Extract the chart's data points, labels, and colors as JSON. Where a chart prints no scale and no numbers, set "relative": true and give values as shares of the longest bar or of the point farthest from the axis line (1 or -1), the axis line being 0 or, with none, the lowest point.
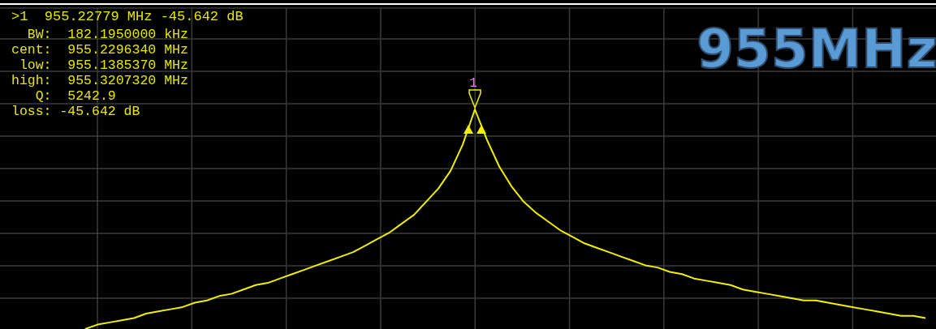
{
  "chart_data": {
    "type": "line",
    "title": "955MHz",
    "relative": true,
    "grid": true,
    "line_style": "solid",
    "categories": [
      null,
      null,
      null,
      null,
      null,
      null,
      null,
      null,
      null,
      null,
      null,
      null,
      null,
      null,
      null,
      null,
      null,
      null,
      null,
      null,
      null,
      null,
      null,
      null,
      null,
      null,
      null,
      null,
      null,
      null,
      null,
      null,
      null,
      null,
      null,
      null,
      null,
      null,
      null,
      null,
      null,
      null,
      null,
      null,
      null,
      null,
      null,
      null,
      null,
      null,
      null,
      null,
      null,
      null,
      null,
      null,
      null,
      null,
      null,
      null,
      null,
      null,
      null,
      null,
      null,
      null,
      null,
      null,
      null,
      null,
      null,
      null,
      null,
      null,
      null,
      null,
      null
    ],
    "series": [
      {
        "color": "#f0f000",
        "values": [
          null,
          null,
          null,
          null,
          null,
          null,
          null,
          0,
          0.02,
          0.03,
          0.04,
          0.05,
          0.07,
          0.08,
          0.09,
          0.1,
          0.12,
          0.13,
          0.15,
          0.16,
          0.18,
          0.2,
          0.21,
          0.23,
          0.25,
          0.27,
          0.29,
          0.31,
          0.33,
          0.35,
          0.38,
          0.41,
          0.44,
          0.48,
          0.52,
          0.58,
          0.64,
          0.72,
          0.84,
          1,
          0.86,
          0.74,
          0.65,
          0.58,
          0.53,
          0.49,
          0.45,
          0.42,
          0.39,
          0.37,
          0.35,
          0.33,
          0.31,
          0.29,
          0.28,
          0.26,
          0.25,
          0.23,
          0.22,
          0.21,
          0.2,
          0.18,
          0.17,
          0.16,
          0.15,
          0.14,
          0.13,
          0.13,
          0.12,
          0.11,
          0.1,
          0.09,
          0.08,
          0.07,
          0.06,
          0.06,
          0.05
        ]
      }
    ],
    "annotations": [
      {
        "text": "1"
      },
      ">1  955.22779 MHz -45.642 dB",
      "  BW:  182.1950000 kHz",
      "cent:  955.2296340 MHz",
      " low:  955.1385370 MHz",
      "high:  955.3207320 MHz",
      "   Q:  5242.9",
      "loss: -45.642 dB"
    ]
  }
}
